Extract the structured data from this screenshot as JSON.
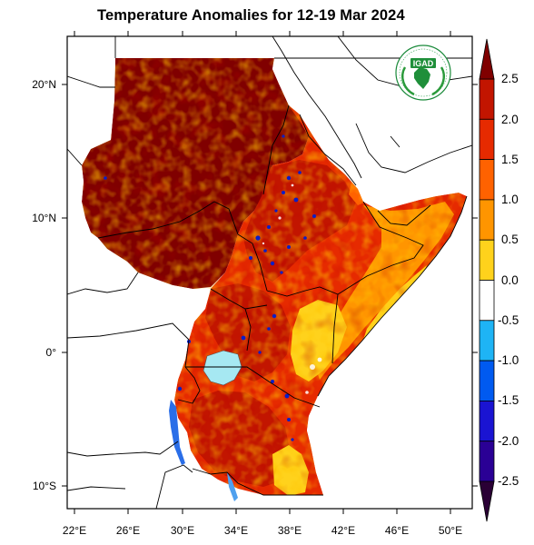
{
  "title": "Temperature Anomalies for 12-19 Mar 2024",
  "logo": {
    "text": "IGAD",
    "icon": "igad-logo-icon"
  },
  "map": {
    "lon_range": [
      21,
      52
    ],
    "lat_range": [
      -12,
      24
    ],
    "lon_ticks": [
      "22°E",
      "26°E",
      "30°E",
      "34°E",
      "38°E",
      "42°E",
      "46°E",
      "50°E"
    ],
    "lat_ticks": [
      "20°N",
      "10°N",
      "0°",
      "10°S"
    ],
    "land_color": "#ffffff",
    "border_color": "#000000"
  },
  "colorbar": {
    "labels": [
      "2.5",
      "2.0",
      "1.5",
      "1.0",
      "0.5",
      "0.0",
      "-0.5",
      "-1.0",
      "-1.5",
      "-2.0",
      "-2.5"
    ],
    "colors": [
      "#800000",
      "#c21500",
      "#e62a00",
      "#ff6200",
      "#ff9500",
      "#ffd21c",
      "#ffffff",
      "#ffffff",
      "#1eb4f5",
      "#005af0",
      "#1a14d2",
      "#2a0095",
      "#58006e",
      "#2a0035"
    ]
  }
}
